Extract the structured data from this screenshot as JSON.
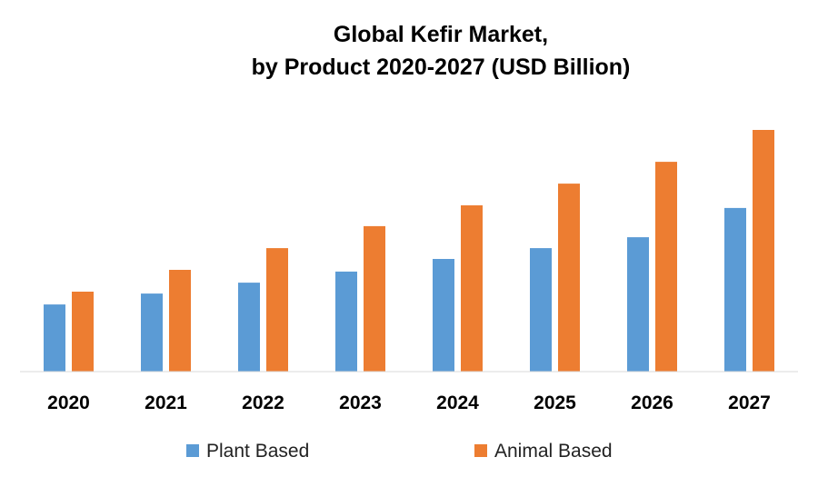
{
  "chart_data": {
    "type": "bar",
    "title": "Global Kefir Market,",
    "subtitle": "by Product 2020-2027 (USD Billion)",
    "xlabel": "",
    "ylabel": "",
    "ylim": [
      0,
      100
    ],
    "grid": false,
    "legend_position": "bottom",
    "categories": [
      "2020",
      "2021",
      "2022",
      "2023",
      "2024",
      "2025",
      "2026",
      "2027"
    ],
    "series": [
      {
        "name": "Plant Based",
        "color": "#5B9BD5",
        "values": [
          27.8,
          32.3,
          36.8,
          41.4,
          46.6,
          51.1,
          55.6,
          67.7
        ]
      },
      {
        "name": "Animal Based",
        "color": "#ED7D31",
        "values": [
          33.1,
          42.1,
          51.1,
          60.2,
          68.8,
          77.8,
          86.8,
          100
        ]
      }
    ]
  }
}
